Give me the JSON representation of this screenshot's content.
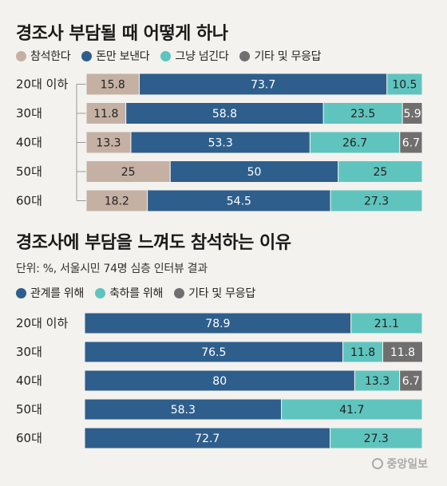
{
  "chart_data": [
    {
      "type": "bar",
      "orientation": "horizontal",
      "stacked": true,
      "title": "경조사 부담될 때 어떻게 하나",
      "categories": [
        "20대 이하",
        "30대",
        "40대",
        "50대",
        "60대"
      ],
      "series": [
        {
          "name": "참석한다",
          "color": "#c5b1a4",
          "text_color": "#222222",
          "values": [
            15.8,
            11.8,
            13.3,
            25,
            18.2
          ],
          "labels": [
            "15.8",
            "11.8",
            "13.3",
            "25",
            "18.2"
          ]
        },
        {
          "name": "돈만 보낸다",
          "color": "#2e5e8c",
          "text_color": "#ffffff",
          "values": [
            73.7,
            58.8,
            53.3,
            50,
            54.5
          ],
          "labels": [
            "73.7",
            "58.8",
            "53.3",
            "50",
            "54.5"
          ]
        },
        {
          "name": "그냥 넘긴다",
          "color": "#5fc4be",
          "text_color": "#222222",
          "values": [
            10.5,
            23.5,
            26.7,
            25,
            27.3
          ],
          "labels": [
            "10.5",
            "23.5",
            "26.7",
            "25",
            "27.3"
          ]
        },
        {
          "name": "기타 및 무응답",
          "color": "#6f6f6f",
          "text_color": "#ffffff",
          "values": [
            0,
            5.9,
            6.7,
            0,
            0
          ],
          "labels": [
            "",
            "5.9",
            "6.7",
            "",
            ""
          ]
        }
      ],
      "xlim": [
        0,
        100
      ]
    },
    {
      "type": "bar",
      "orientation": "horizontal",
      "stacked": true,
      "title": "경조사에 부담을 느껴도 참석하는 이유",
      "subtitle": "단위: %, 서울시민 74명 심층 인터뷰 결과",
      "categories": [
        "20대 이하",
        "30대",
        "40대",
        "50대",
        "60대"
      ],
      "series": [
        {
          "name": "관계를 위해",
          "color": "#2e5e8c",
          "text_color": "#ffffff",
          "values": [
            78.9,
            76.5,
            80,
            58.3,
            72.7
          ],
          "labels": [
            "78.9",
            "76.5",
            "80",
            "58.3",
            "72.7"
          ]
        },
        {
          "name": "축하를 위해",
          "color": "#5fc4be",
          "text_color": "#222222",
          "values": [
            21.1,
            11.8,
            13.3,
            41.7,
            27.3
          ],
          "labels": [
            "21.1",
            "11.8",
            "13.3",
            "41.7",
            "27.3"
          ]
        },
        {
          "name": "기타 및 무응답",
          "color": "#6f6f6f",
          "text_color": "#ffffff",
          "values": [
            0,
            11.8,
            6.7,
            0,
            0
          ],
          "labels": [
            "",
            "11.8",
            "6.7",
            "",
            ""
          ]
        }
      ],
      "xlim": [
        0,
        100
      ]
    }
  ],
  "logo": {
    "text": "중앙일보"
  }
}
